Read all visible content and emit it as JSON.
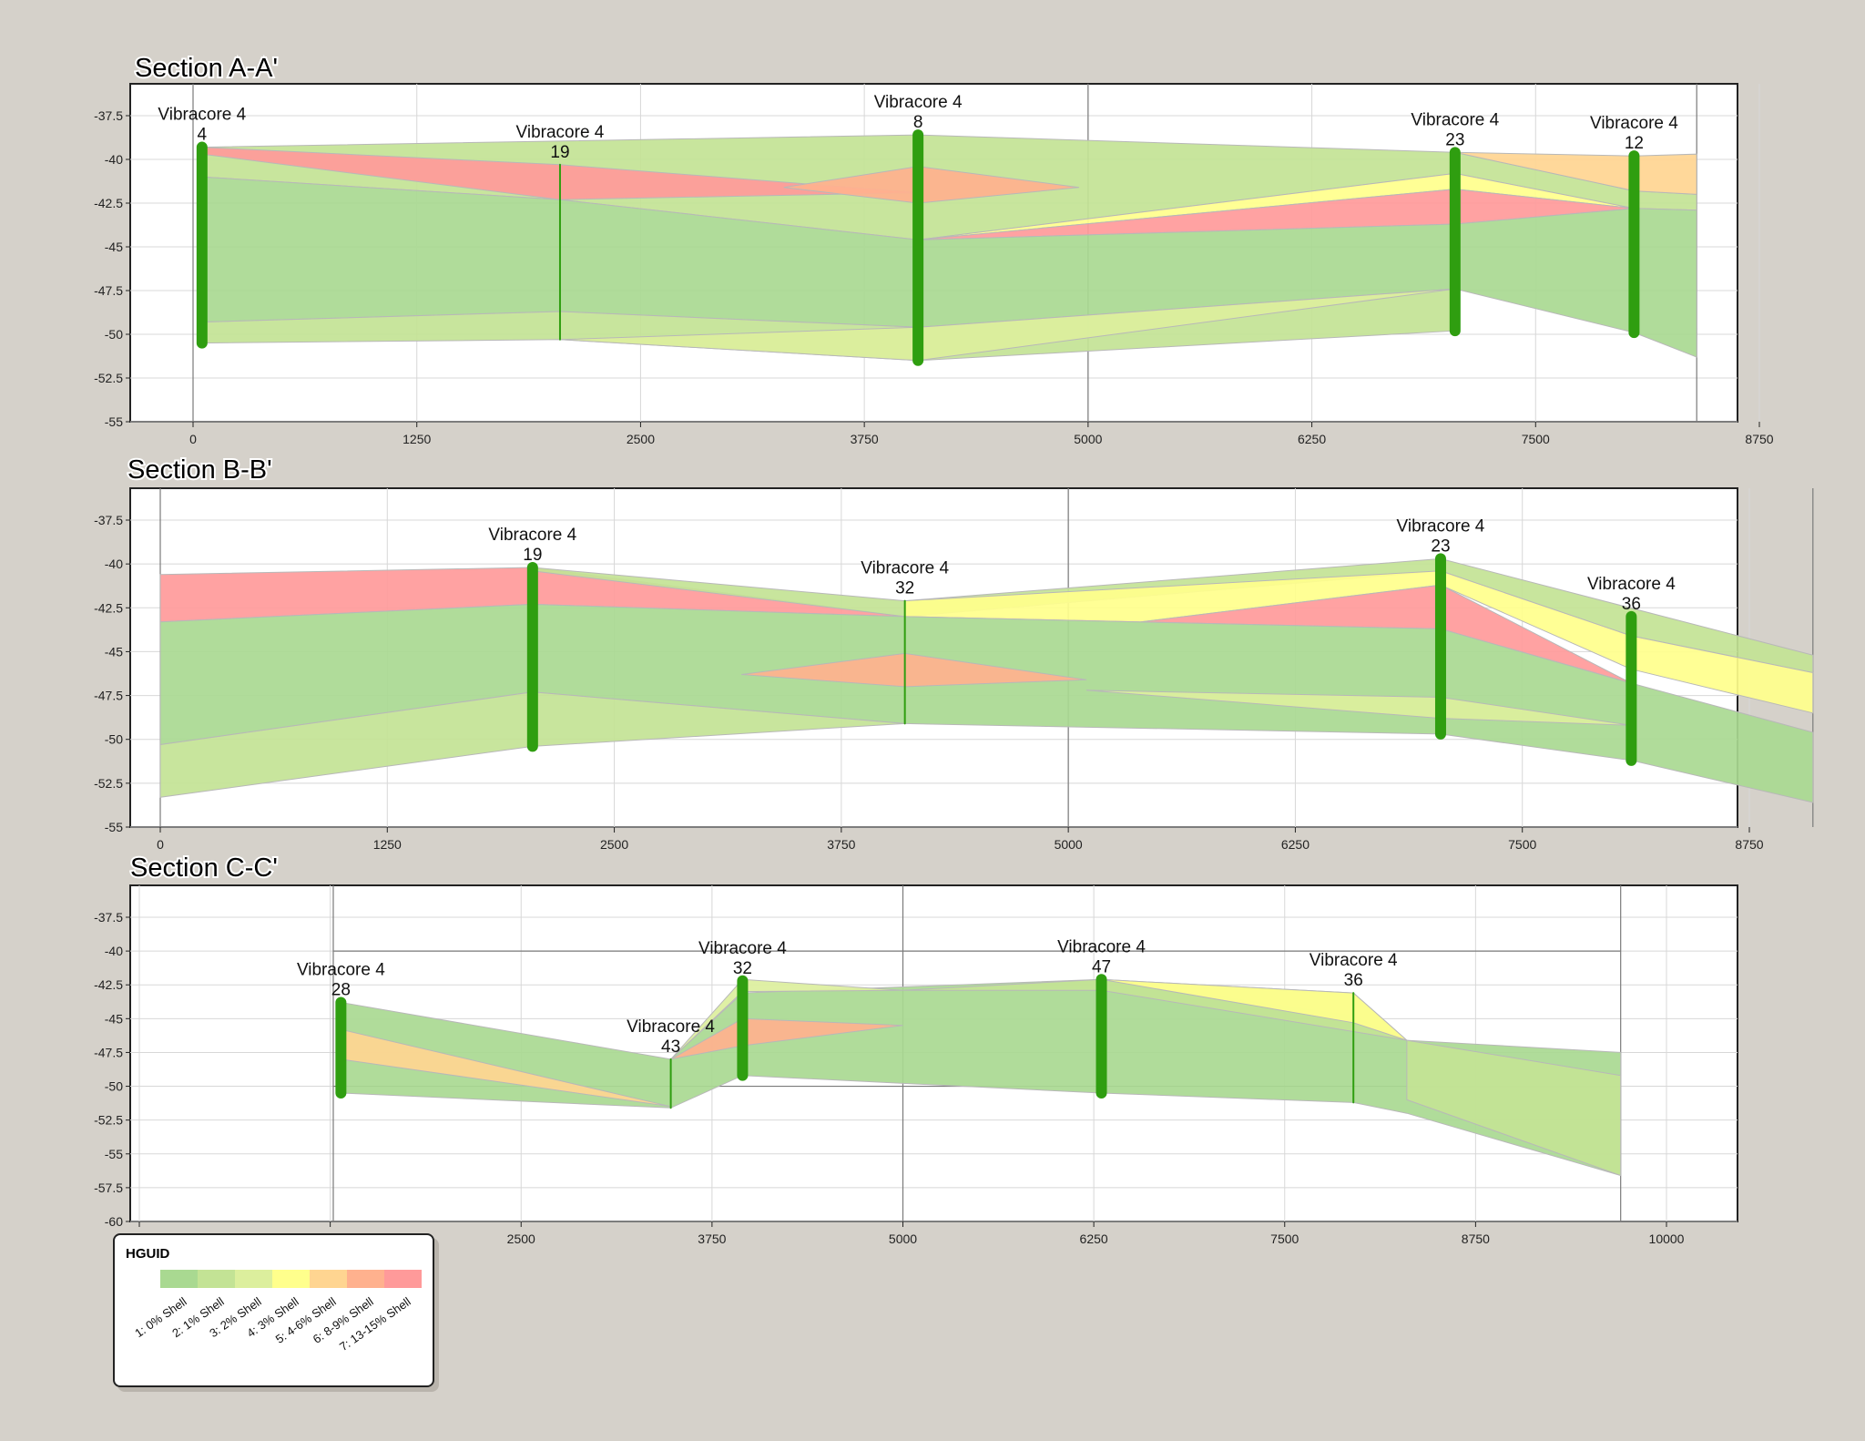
{
  "legend": {
    "title": "HGUID",
    "items": [
      {
        "label": "1: 0% Shell",
        "color": "#a9d991"
      },
      {
        "label": "2: 1% Shell",
        "color": "#c3e395"
      },
      {
        "label": "3: 2% Shell",
        "color": "#dcef9d"
      },
      {
        "label": "4: 3% Shell",
        "color": "#ffff8c"
      },
      {
        "label": "5: 4-6% Shell",
        "color": "#ffd591"
      },
      {
        "label": "6: 8-9% Shell",
        "color": "#ffb18e"
      },
      {
        "label": "7: 13-15% Shell",
        "color": "#ff9a9a"
      }
    ]
  },
  "chart_data": [
    {
      "type": "area",
      "title": "Section A-A'",
      "xlim": [
        0,
        8750
      ],
      "ylim": [
        -55,
        -37.5
      ],
      "xticks": [
        0,
        1250,
        2500,
        3750,
        5000,
        6250,
        7500,
        8750
      ],
      "yticks": [
        -37.5,
        -40,
        -42.5,
        -45,
        -47.5,
        -50,
        -52.5,
        -55
      ],
      "cores": [
        {
          "name": "Vibracore 4",
          "id": "4",
          "x": 50,
          "top": -39.3,
          "bottom": -50.5
        },
        {
          "name": "Vibracore 4",
          "id": "19",
          "x": 2050,
          "top": -40.3,
          "bottom": -50.3
        },
        {
          "name": "Vibracore 4",
          "id": "8",
          "x": 4050,
          "top": -38.6,
          "bottom": -51.5
        },
        {
          "name": "Vibracore 4",
          "id": "23",
          "x": 7050,
          "top": -39.6,
          "bottom": -49.8
        },
        {
          "name": "Vibracore 4",
          "id": "12",
          "x": 8050,
          "top": -39.8,
          "bottom": -49.9
        }
      ],
      "units": [
        {
          "class": 2,
          "points": [
            [
              50,
              -39.3
            ],
            [
              4050,
              -38.6
            ],
            [
              7050,
              -39.6
            ],
            [
              8050,
              -41.8
            ],
            [
              8400,
              -42.0
            ],
            [
              8400,
              -42.9
            ],
            [
              8050,
              -42.8
            ],
            [
              7050,
              -40.8
            ],
            [
              4050,
              -44.6
            ],
            [
              2050,
              -42.3
            ],
            [
              50,
              -41.0
            ]
          ]
        },
        {
          "class": 7,
          "points": [
            [
              50,
              -39.3
            ],
            [
              2050,
              -40.3
            ],
            [
              4050,
              -41.9
            ],
            [
              2050,
              -42.3
            ],
            [
              50,
              -39.7
            ]
          ]
        },
        {
          "class": 6,
          "points": [
            [
              3300,
              -41.6
            ],
            [
              4050,
              -40.4
            ],
            [
              4950,
              -41.6
            ],
            [
              4050,
              -42.5
            ]
          ]
        },
        {
          "class": 5,
          "points": [
            [
              7050,
              -39.6
            ],
            [
              8050,
              -39.8
            ],
            [
              8400,
              -39.7
            ],
            [
              8400,
              -42.0
            ],
            [
              8050,
              -41.8
            ]
          ]
        },
        {
          "class": 4,
          "points": [
            [
              4050,
              -44.6
            ],
            [
              7050,
              -40.8
            ],
            [
              8050,
              -42.8
            ],
            [
              7050,
              -41.7
            ]
          ]
        },
        {
          "class": 7,
          "points": [
            [
              4050,
              -44.6
            ],
            [
              7050,
              -41.7
            ],
            [
              8050,
              -42.8
            ],
            [
              7050,
              -43.7
            ]
          ]
        },
        {
          "class": 1,
          "points": [
            [
              50,
              -41.0
            ],
            [
              2050,
              -42.3
            ],
            [
              4050,
              -44.6
            ],
            [
              7050,
              -43.7
            ],
            [
              8050,
              -42.8
            ],
            [
              8400,
              -42.9
            ],
            [
              8400,
              -51.3
            ],
            [
              8050,
              -49.9
            ],
            [
              7050,
              -47.4
            ],
            [
              4050,
              -49.6
            ],
            [
              2050,
              -48.7
            ],
            [
              50,
              -49.3
            ]
          ]
        },
        {
          "class": 2,
          "points": [
            [
              50,
              -49.3
            ],
            [
              2050,
              -48.7
            ],
            [
              4050,
              -49.6
            ],
            [
              7050,
              -47.4
            ],
            [
              7050,
              -49.8
            ],
            [
              4050,
              -51.5
            ],
            [
              2050,
              -50.3
            ],
            [
              50,
              -50.5
            ]
          ]
        },
        {
          "class": 3,
          "points": [
            [
              2050,
              -50.3
            ],
            [
              4050,
              -49.6
            ],
            [
              7050,
              -47.4
            ],
            [
              4050,
              -51.5
            ]
          ]
        }
      ]
    },
    {
      "type": "area",
      "title": "Section B-B'",
      "xlim": [
        0,
        9100
      ],
      "ylim": [
        -55,
        -37.5
      ],
      "xticks": [
        0,
        1250,
        2500,
        3750,
        5000,
        6250,
        7500,
        8750
      ],
      "yticks": [
        -37.5,
        -40,
        -42.5,
        -45,
        -47.5,
        -50,
        -52.5,
        -55
      ],
      "cores": [
        {
          "name": "Vibracore 4",
          "id": "19",
          "x": 2050,
          "top": -40.2,
          "bottom": -50.4
        },
        {
          "name": "Vibracore 4",
          "id": "32",
          "x": 4100,
          "top": -42.1,
          "bottom": -49.1
        },
        {
          "name": "Vibracore 4",
          "id": "23",
          "x": 7050,
          "top": -39.7,
          "bottom": -49.7
        },
        {
          "name": "Vibracore 4",
          "id": "36",
          "x": 8100,
          "top": -43.0,
          "bottom": -51.2
        }
      ],
      "units": [
        {
          "class": 7,
          "points": [
            [
              0,
              -40.6
            ],
            [
              2050,
              -40.2
            ],
            [
              4100,
              -43.0
            ],
            [
              2050,
              -42.3
            ],
            [
              0,
              -43.3
            ]
          ]
        },
        {
          "class": 2,
          "points": [
            [
              2050,
              -40.2
            ],
            [
              4100,
              -42.1
            ],
            [
              7050,
              -39.7
            ],
            [
              9100,
              -45.2
            ],
            [
              9100,
              -46.2
            ],
            [
              8100,
              -44.1
            ],
            [
              7050,
              -40.4
            ],
            [
              4100,
              -43.0
            ],
            [
              2050,
              -40.4
            ]
          ]
        },
        {
          "class": 4,
          "points": [
            [
              4100,
              -42.1
            ],
            [
              7050,
              -40.4
            ],
            [
              8100,
              -44.1
            ],
            [
              9100,
              -46.2
            ],
            [
              9100,
              -48.5
            ],
            [
              8100,
              -46.0
            ],
            [
              7050,
              -41.2
            ],
            [
              5400,
              -43.3
            ],
            [
              4100,
              -43.0
            ]
          ]
        },
        {
          "class": 7,
          "points": [
            [
              5400,
              -43.3
            ],
            [
              7050,
              -41.2
            ],
            [
              8100,
              -46.8
            ],
            [
              7050,
              -43.7
            ]
          ]
        },
        {
          "class": 1,
          "points": [
            [
              0,
              -43.3
            ],
            [
              2050,
              -42.3
            ],
            [
              4100,
              -43.0
            ],
            [
              7050,
              -43.7
            ],
            [
              8100,
              -46.8
            ],
            [
              9100,
              -49.6
            ],
            [
              9100,
              -53.6
            ],
            [
              8100,
              -51.2
            ],
            [
              7050,
              -49.7
            ],
            [
              4100,
              -49.1
            ],
            [
              2050,
              -47.3
            ],
            [
              0,
              -50.3
            ]
          ]
        },
        {
          "class": 6,
          "points": [
            [
              3200,
              -46.3
            ],
            [
              4100,
              -45.1
            ],
            [
              5100,
              -46.6
            ],
            [
              4100,
              -47.0
            ]
          ]
        },
        {
          "class": 2,
          "points": [
            [
              0,
              -50.3
            ],
            [
              2050,
              -47.3
            ],
            [
              4100,
              -49.1
            ],
            [
              2050,
              -50.4
            ],
            [
              0,
              -53.3
            ]
          ]
        },
        {
          "class": 3,
          "points": [
            [
              5100,
              -47.2
            ],
            [
              7050,
              -47.6
            ],
            [
              8100,
              -49.2
            ],
            [
              7050,
              -48.8
            ]
          ]
        }
      ]
    },
    {
      "type": "area",
      "title": "Section C-C'",
      "xlim": [
        -200,
        10400
      ],
      "ylim": [
        -60,
        -37.5
      ],
      "xticks": [
        0,
        1250,
        2500,
        3750,
        5000,
        6250,
        7500,
        8750,
        10000
      ],
      "yticks": [
        -37.5,
        -40,
        -42.5,
        -45,
        -47.5,
        -50,
        -52.5,
        -55,
        -57.5,
        -60
      ],
      "cores": [
        {
          "name": "Vibracore 4",
          "id": "28",
          "x": 1320,
          "top": -43.8,
          "bottom": -50.5
        },
        {
          "name": "Vibracore 4",
          "id": "43",
          "x": 3480,
          "top": -48.0,
          "bottom": -51.6
        },
        {
          "name": "Vibracore 4",
          "id": "32",
          "x": 3950,
          "top": -42.2,
          "bottom": -49.2
        },
        {
          "name": "Vibracore 4",
          "id": "47",
          "x": 6300,
          "top": -42.1,
          "bottom": -50.5
        },
        {
          "name": "Vibracore 4",
          "id": "36",
          "x": 7950,
          "top": -43.1,
          "bottom": -51.2
        }
      ],
      "units": [
        {
          "class": 1,
          "points": [
            [
              1320,
              -43.8
            ],
            [
              3480,
              -48.0
            ],
            [
              3950,
              -43.1
            ],
            [
              6300,
              -42.1
            ],
            [
              7950,
              -44.8
            ],
            [
              8300,
              -46.6
            ],
            [
              9700,
              -47.5
            ],
            [
              9700,
              -56.6
            ],
            [
              8300,
              -52.0
            ],
            [
              7950,
              -51.2
            ],
            [
              6300,
              -50.5
            ],
            [
              3950,
              -49.2
            ],
            [
              3480,
              -51.6
            ],
            [
              1320,
              -50.5
            ]
          ]
        },
        {
          "class": 5,
          "points": [
            [
              1320,
              -45.8
            ],
            [
              3480,
              -51.5
            ],
            [
              1320,
              -48.0
            ]
          ]
        },
        {
          "class": 3,
          "points": [
            [
              3480,
              -48.0
            ],
            [
              3950,
              -42.1
            ],
            [
              5000,
              -42.9
            ],
            [
              3950,
              -43.0
            ]
          ]
        },
        {
          "class": 6,
          "points": [
            [
              3480,
              -48.0
            ],
            [
              3950,
              -45.0
            ],
            [
              5000,
              -45.5
            ],
            [
              3950,
              -47.0
            ]
          ]
        },
        {
          "class": 2,
          "points": [
            [
              5000,
              -42.9
            ],
            [
              6300,
              -42.1
            ],
            [
              7950,
              -43.1
            ],
            [
              8300,
              -46.6
            ],
            [
              6300,
              -42.9
            ]
          ]
        },
        {
          "class": 4,
          "points": [
            [
              6300,
              -42.1
            ],
            [
              7950,
              -43.1
            ],
            [
              8300,
              -46.6
            ],
            [
              7950,
              -45.3
            ]
          ]
        },
        {
          "class": 2,
          "points": [
            [
              8300,
              -46.6
            ],
            [
              9700,
              -49.2
            ],
            [
              9700,
              -56.6
            ],
            [
              8300,
              -51.0
            ]
          ]
        }
      ]
    }
  ]
}
